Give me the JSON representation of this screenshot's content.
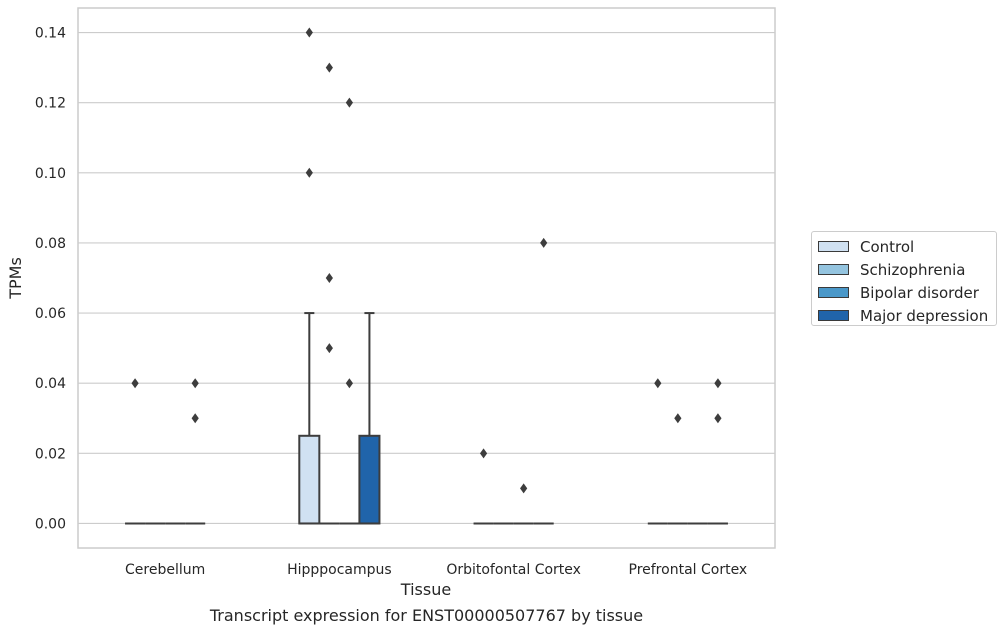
{
  "chart_data": {
    "type": "box",
    "xlabel": "Tissue",
    "ylabel": "TPMs",
    "caption": "Transcript expression for ENST00000507767 by tissue",
    "categories": [
      "Cerebellum",
      "Hipppocampus",
      "Orbitofontal Cortex",
      "Prefrontal Cortex"
    ],
    "ylim": [
      -0.007,
      0.147
    ],
    "yticks": [
      0.0,
      0.02,
      0.04,
      0.06,
      0.08,
      0.1,
      0.12,
      0.14
    ],
    "ytick_labels": [
      "0.00",
      "0.02",
      "0.04",
      "0.06",
      "0.08",
      "0.10",
      "0.12",
      "0.14"
    ],
    "grid": true,
    "legend_position": "right",
    "series": [
      {
        "name": "Control",
        "color": "#d0e1f2",
        "boxes": [
          {
            "q1": 0,
            "median": 0,
            "q3": 0,
            "whisker_low": 0,
            "whisker_high": 0,
            "outliers": [
              0.04
            ]
          },
          {
            "q1": 0,
            "median": 0,
            "q3": 0.025,
            "whisker_low": 0,
            "whisker_high": 0.06,
            "outliers": [
              0.14,
              0.1
            ]
          },
          {
            "q1": 0,
            "median": 0,
            "q3": 0,
            "whisker_low": 0,
            "whisker_high": 0,
            "outliers": [
              0.02
            ]
          },
          {
            "q1": 0,
            "median": 0,
            "q3": 0,
            "whisker_low": 0,
            "whisker_high": 0,
            "outliers": [
              0.04
            ]
          }
        ]
      },
      {
        "name": "Schizophrenia",
        "color": "#94c4df",
        "boxes": [
          {
            "q1": 0,
            "median": 0,
            "q3": 0,
            "whisker_low": 0,
            "whisker_high": 0,
            "outliers": []
          },
          {
            "q1": 0,
            "median": 0,
            "q3": 0,
            "whisker_low": 0,
            "whisker_high": 0,
            "outliers": [
              0.13,
              0.07,
              0.05
            ]
          },
          {
            "q1": 0,
            "median": 0,
            "q3": 0,
            "whisker_low": 0,
            "whisker_high": 0,
            "outliers": []
          },
          {
            "q1": 0,
            "median": 0,
            "q3": 0,
            "whisker_low": 0,
            "whisker_high": 0,
            "outliers": [
              0.03
            ]
          }
        ]
      },
      {
        "name": "Bipolar disorder",
        "color": "#4a98c9",
        "boxes": [
          {
            "q1": 0,
            "median": 0,
            "q3": 0,
            "whisker_low": 0,
            "whisker_high": 0,
            "outliers": []
          },
          {
            "q1": 0,
            "median": 0,
            "q3": 0,
            "whisker_low": 0,
            "whisker_high": 0,
            "outliers": [
              0.12,
              0.04
            ]
          },
          {
            "q1": 0,
            "median": 0,
            "q3": 0,
            "whisker_low": 0,
            "whisker_high": 0,
            "outliers": [
              0.01
            ]
          },
          {
            "q1": 0,
            "median": 0,
            "q3": 0,
            "whisker_low": 0,
            "whisker_high": 0,
            "outliers": []
          }
        ]
      },
      {
        "name": "Major depression",
        "color": "#2064aa",
        "boxes": [
          {
            "q1": 0,
            "median": 0,
            "q3": 0,
            "whisker_low": 0,
            "whisker_high": 0,
            "outliers": [
              0.04,
              0.03
            ]
          },
          {
            "q1": 0,
            "median": 0,
            "q3": 0.025,
            "whisker_low": 0,
            "whisker_high": 0.06,
            "outliers": []
          },
          {
            "q1": 0,
            "median": 0,
            "q3": 0,
            "whisker_low": 0,
            "whisker_high": 0,
            "outliers": [
              0.08
            ]
          },
          {
            "q1": 0,
            "median": 0,
            "q3": 0,
            "whisker_low": 0,
            "whisker_high": 0,
            "outliers": [
              0.04,
              0.03
            ]
          }
        ]
      }
    ]
  }
}
